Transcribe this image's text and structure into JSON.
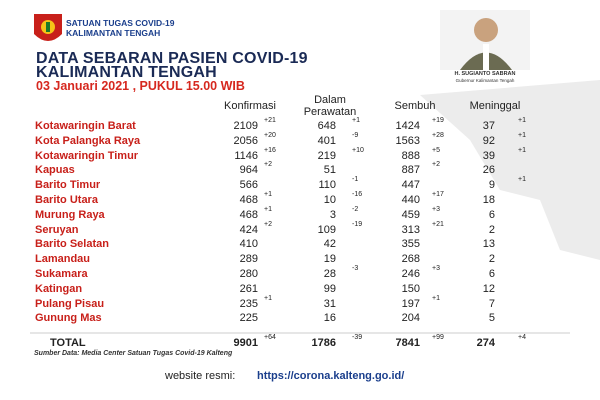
{
  "header": {
    "org_line1": "SATUAN TUGAS COVID-19",
    "org_line2": "KALIMANTAN TENGAH",
    "title_line1": "DATA SEBARAN PASIEN COVID-19",
    "title_line2": "KALIMANTAN TENGAH",
    "date": "03 Januari 2021  , PUKUL 15.00 WIB",
    "photo_name": "H. SUGIANTO SABRAN",
    "photo_caption": "Gubernur Kalimantan Tengah"
  },
  "table": {
    "columns": [
      "Konfirmasi",
      "Dalam Perawatan",
      "Sembuh",
      "Meninggal"
    ],
    "rows": [
      [
        "Kotawaringin Barat",
        2109,
        "+21",
        648,
        "+1",
        1424,
        "+19",
        37,
        "+1"
      ],
      [
        "Kota Palangka Raya",
        2056,
        "+20",
        401,
        "-9",
        1563,
        "+28",
        92,
        "+1"
      ],
      [
        "Kotawaringin Timur",
        1146,
        "+16",
        219,
        "+10",
        888,
        "+5",
        39,
        "+1"
      ],
      [
        "Kapuas",
        964,
        "+2",
        51,
        null,
        887,
        "+2",
        26,
        null
      ],
      [
        "Barito Timur",
        566,
        null,
        110,
        "-1",
        447,
        null,
        9,
        "+1"
      ],
      [
        "Barito Utara",
        468,
        "+1",
        10,
        "-16",
        440,
        "+17",
        18,
        null
      ],
      [
        "Murung Raya",
        468,
        "+1",
        3,
        "-2",
        459,
        "+3",
        6,
        null
      ],
      [
        "Seruyan",
        424,
        "+2",
        109,
        "-19",
        313,
        "+21",
        2,
        null
      ],
      [
        "Barito Selatan",
        410,
        null,
        42,
        null,
        355,
        null,
        13,
        null
      ],
      [
        "Lamandau",
        289,
        null,
        19,
        null,
        268,
        null,
        2,
        null
      ],
      [
        "Sukamara",
        280,
        null,
        28,
        "-3",
        246,
        "+3",
        6,
        null
      ],
      [
        "Katingan",
        261,
        null,
        99,
        null,
        150,
        null,
        12,
        null
      ],
      [
        "Pulang Pisau",
        235,
        "+1",
        31,
        null,
        197,
        "+1",
        7,
        null
      ],
      [
        "Gunung Mas",
        225,
        null,
        16,
        null,
        204,
        null,
        5,
        null
      ]
    ],
    "total": [
      "TOTAL",
      9901,
      "+64",
      1786,
      "-39",
      7841,
      "+99",
      274,
      "+4"
    ]
  },
  "footer": {
    "source": "Sumber Data: Media Center Satuan Tugas Covid-19 Kalteng",
    "website_label": "website resmi:",
    "website_url": "https://corona.kalteng.go.id/"
  }
}
